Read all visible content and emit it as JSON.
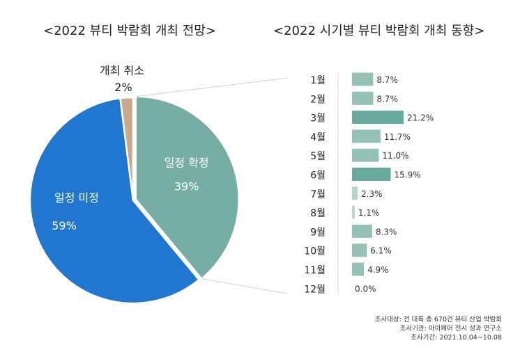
{
  "titles": {
    "left": "<2022 뷰티 박람회 개최 전망>",
    "right": "<2022 시기별 뷰티 박람회 개최  동향>"
  },
  "colors": {
    "blue": "#2176d0",
    "teal": "#76aea6",
    "tan": "#c9a98a",
    "bar_dark": "#6aaa9e",
    "bar_mid": "#95c1b6",
    "bar_light": "#b3d5cc"
  },
  "chart_data": [
    {
      "type": "pie",
      "title": "<2022 뷰티 박람회 개최 전망>",
      "slices": [
        {
          "label": "일정 확정",
          "value": 39,
          "value_label": "39%",
          "color": "#76aea6"
        },
        {
          "label": "일정 미정",
          "value": 59,
          "value_label": "59%",
          "color": "#2176d0"
        },
        {
          "label": "개최 취소",
          "value": 2,
          "value_label": "2%",
          "color": "#c9a98a"
        }
      ]
    },
    {
      "type": "bar",
      "orientation": "horizontal",
      "title": "<2022 시기별 뷰티 박람회 개최  동향>",
      "categories": [
        "1월",
        "2월",
        "3월",
        "4월",
        "5월",
        "6월",
        "7월",
        "8월",
        "9월",
        "10월",
        "11월",
        "12월"
      ],
      "values": [
        8.7,
        8.7,
        21.2,
        11.7,
        11.0,
        15.9,
        2.3,
        1.1,
        8.3,
        6.1,
        4.9,
        0.0
      ],
      "value_labels": [
        "8.7%",
        "8.7%",
        "21.2%",
        "11.7%",
        "11.0%",
        "15.9%",
        "2.3%",
        "1.1%",
        "8.3%",
        "6.1%",
        "4.9%",
        "0.0%"
      ],
      "xlim": [
        0,
        25
      ]
    }
  ],
  "notes": [
    "조사대상: 전 대륙 총 670건 뷰티 산업 박람회",
    "조사기관: 마이페어 전시 성과 연구소",
    "조사기간: 2021.10.04~10.08"
  ]
}
